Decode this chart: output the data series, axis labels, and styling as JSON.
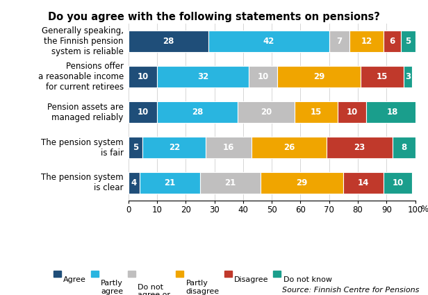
{
  "title": "Do you agree with the following statements on pensions?",
  "categories": [
    "Generally speaking,\nthe Finnish pension\nsystem is reliable",
    "Pensions offer\na reasonable income\nfor current retirees",
    "Pension assets are\nmanaged reliably",
    "The pension system\nis fair",
    "The pension system\nis clear"
  ],
  "series": [
    {
      "label": "Agree",
      "color": "#1f4e79",
      "values": [
        28,
        10,
        10,
        5,
        4
      ]
    },
    {
      "label": "Partly\nagree",
      "color": "#29b5e0",
      "values": [
        42,
        32,
        28,
        22,
        21
      ]
    },
    {
      "label": "Do not\nagree or\ndisagree",
      "color": "#c0bfbf",
      "values": [
        7,
        10,
        20,
        16,
        21
      ]
    },
    {
      "label": "Partly\ndisagree",
      "color": "#f0a500",
      "values": [
        12,
        29,
        15,
        26,
        29
      ]
    },
    {
      "label": "Disagree",
      "color": "#c0392b",
      "values": [
        6,
        15,
        10,
        23,
        14
      ]
    },
    {
      "label": "Do not know",
      "color": "#1a9e8c",
      "values": [
        5,
        3,
        18,
        8,
        10
      ]
    }
  ],
  "xlim": [
    0,
    100
  ],
  "xticks": [
    0,
    10,
    20,
    30,
    40,
    50,
    60,
    70,
    80,
    90,
    100
  ],
  "source": "Source: Finnish Centre for Pensions",
  "background_color": "#ffffff",
  "bar_height": 0.6,
  "title_fontsize": 10.5,
  "tick_fontsize": 8.5,
  "label_fontsize": 8.5,
  "legend_fontsize": 8,
  "source_fontsize": 8
}
